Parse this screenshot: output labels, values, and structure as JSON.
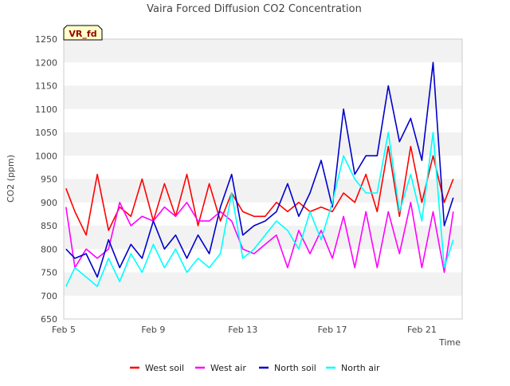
{
  "chart_data": {
    "type": "line",
    "title": "Vaira Forced Diffusion CO2 Concentration",
    "xlabel": "Time",
    "ylabel": "CO2 (ppm)",
    "badge": "VR_fd",
    "x_ticks": [
      "Feb 5",
      "Feb 9",
      "Feb 13",
      "Feb 17",
      "Feb 21"
    ],
    "x_range_days": [
      5,
      22.8
    ],
    "ylim": [
      650,
      1250
    ],
    "y_ticks": [
      650,
      700,
      750,
      800,
      850,
      900,
      950,
      1000,
      1050,
      1100,
      1150,
      1200,
      1250
    ],
    "grid": "horizontal alternating bands",
    "legend": "bottom-center",
    "x_sample_days": [
      5.1,
      5.5,
      6.0,
      6.5,
      7.0,
      7.5,
      8.0,
      8.5,
      9.0,
      9.5,
      10.0,
      10.5,
      11.0,
      11.5,
      12.0,
      12.5,
      13.0,
      13.5,
      14.0,
      14.5,
      15.0,
      15.5,
      16.0,
      16.5,
      17.0,
      17.5,
      18.0,
      18.5,
      19.0,
      19.5,
      20.0,
      20.5,
      21.0,
      21.5,
      22.0,
      22.4
    ],
    "series": [
      {
        "name": "West soil",
        "color": "#ff0000",
        "values": [
          930,
          880,
          830,
          960,
          840,
          890,
          870,
          950,
          860,
          940,
          870,
          960,
          850,
          940,
          860,
          920,
          880,
          870,
          870,
          900,
          880,
          900,
          880,
          890,
          880,
          920,
          900,
          960,
          880,
          1020,
          870,
          1020,
          900,
          1000,
          900,
          950
        ]
      },
      {
        "name": "West air",
        "color": "#ff00ff",
        "values": [
          890,
          760,
          800,
          780,
          800,
          900,
          850,
          870,
          860,
          890,
          870,
          900,
          860,
          860,
          880,
          860,
          800,
          790,
          810,
          830,
          760,
          840,
          790,
          840,
          780,
          870,
          760,
          880,
          760,
          880,
          790,
          900,
          760,
          880,
          750,
          880
        ]
      },
      {
        "name": "North soil",
        "color": "#0000cc",
        "values": [
          800,
          780,
          790,
          740,
          820,
          760,
          810,
          780,
          860,
          800,
          830,
          780,
          830,
          790,
          890,
          960,
          830,
          850,
          860,
          880,
          940,
          870,
          920,
          990,
          890,
          1100,
          960,
          1000,
          1000,
          1150,
          1030,
          1080,
          990,
          1200,
          850,
          910
        ]
      },
      {
        "name": "North air",
        "color": "#00ffff",
        "values": [
          720,
          760,
          740,
          720,
          780,
          730,
          790,
          750,
          810,
          760,
          800,
          750,
          780,
          760,
          790,
          920,
          780,
          800,
          830,
          860,
          840,
          800,
          880,
          820,
          900,
          1000,
          950,
          920,
          920,
          1050,
          880,
          960,
          860,
          1050,
          760,
          820
        ]
      }
    ]
  }
}
